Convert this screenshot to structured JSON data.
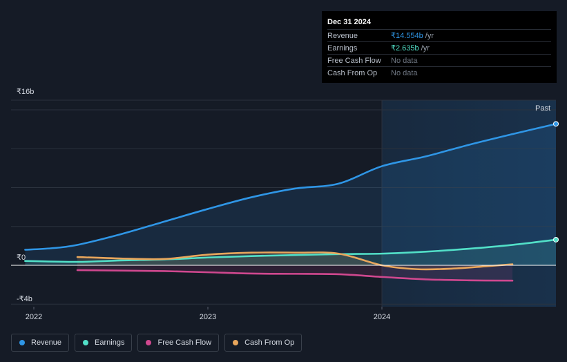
{
  "tooltip": {
    "date": "Dec 31 2024",
    "rows": [
      {
        "label": "Revenue",
        "value": "₹14.554b",
        "unit": "/yr"
      },
      {
        "label": "Earnings",
        "value": "₹2.635b",
        "unit": "/yr"
      },
      {
        "label": "Free Cash Flow",
        "nodata": "No data"
      },
      {
        "label": "Cash From Op",
        "nodata": "No data"
      }
    ]
  },
  "legend": [
    {
      "label": "Revenue",
      "color": "#2f96e6"
    },
    {
      "label": "Earnings",
      "color": "#52e0c8"
    },
    {
      "label": "Free Cash Flow",
      "color": "#d0488f"
    },
    {
      "label": "Cash From Op",
      "color": "#e8a65c"
    }
  ],
  "chart_data": {
    "type": "line",
    "title": "",
    "xlabel": "",
    "ylabel": "",
    "past_label": "Past",
    "y_tick_labels": [
      {
        "value": 16,
        "label": "₹16b"
      },
      {
        "value": 0,
        "label": "₹0"
      },
      {
        "value": -4,
        "label": "-₹4b"
      }
    ],
    "x_tick_labels": [
      {
        "value": 2022.0,
        "label": "2022"
      },
      {
        "value": 2023.0,
        "label": "2023"
      },
      {
        "value": 2024.0,
        "label": "2024"
      }
    ],
    "xlim": [
      2021.95,
      2025.0
    ],
    "ylim": [
      -4,
      16
    ],
    "past_start": 2024.0,
    "series": [
      {
        "name": "Revenue",
        "color": "#2f96e6",
        "fill": true,
        "end_marker": true,
        "x": [
          2021.95,
          2022.1,
          2022.25,
          2022.5,
          2022.75,
          2023.0,
          2023.25,
          2023.5,
          2023.75,
          2024.0,
          2024.25,
          2024.5,
          2024.75,
          2025.0
        ],
        "y": [
          1.6,
          1.75,
          2.1,
          3.2,
          4.5,
          5.8,
          7.0,
          7.9,
          8.4,
          10.2,
          11.2,
          12.4,
          13.5,
          14.554
        ]
      },
      {
        "name": "Earnings",
        "color": "#52e0c8",
        "fill": true,
        "end_marker": true,
        "x": [
          2021.95,
          2022.25,
          2022.5,
          2022.75,
          2023.0,
          2023.25,
          2023.5,
          2023.75,
          2024.0,
          2024.25,
          2024.5,
          2024.75,
          2025.0
        ],
        "y": [
          0.45,
          0.35,
          0.5,
          0.6,
          0.8,
          0.95,
          1.05,
          1.15,
          1.2,
          1.4,
          1.7,
          2.1,
          2.635
        ]
      },
      {
        "name": "Free Cash Flow",
        "color": "#d0488f",
        "fill": true,
        "end_marker": false,
        "x": [
          2022.25,
          2022.5,
          2022.75,
          2023.0,
          2023.25,
          2023.5,
          2023.75,
          2024.0,
          2024.25,
          2024.5,
          2024.75
        ],
        "y": [
          -0.5,
          -0.55,
          -0.6,
          -0.72,
          -0.85,
          -0.88,
          -0.92,
          -1.2,
          -1.45,
          -1.55,
          -1.58
        ]
      },
      {
        "name": "Cash From Op",
        "color": "#e8a65c",
        "fill": true,
        "end_marker": false,
        "x": [
          2022.25,
          2022.5,
          2022.75,
          2023.0,
          2023.25,
          2023.5,
          2023.75,
          2024.0,
          2024.2,
          2024.4,
          2024.6,
          2024.75
        ],
        "y": [
          0.85,
          0.7,
          0.65,
          1.1,
          1.3,
          1.3,
          1.2,
          0.0,
          -0.4,
          -0.35,
          -0.1,
          0.1
        ]
      }
    ]
  }
}
